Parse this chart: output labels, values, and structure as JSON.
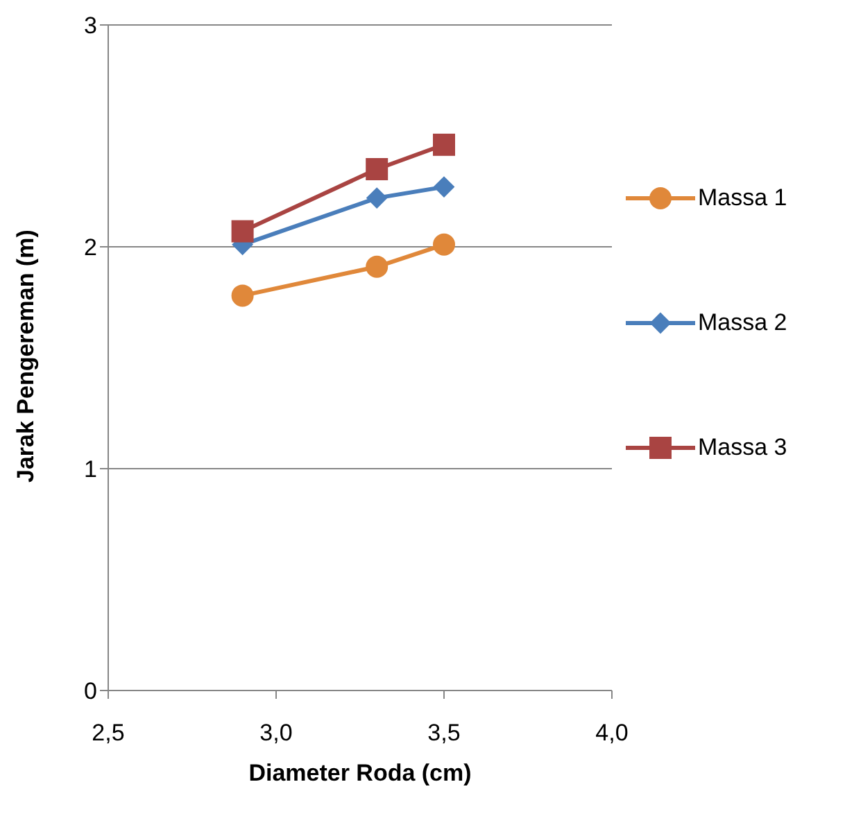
{
  "chart_data": {
    "type": "line",
    "xlabel": "Diameter Roda (cm)",
    "ylabel": "Jarak Pengereman (m)",
    "x": [
      2.9,
      3.3,
      3.5
    ],
    "series": [
      {
        "name": "Massa 1",
        "color": "#e0883a",
        "marker": "circle",
        "values": [
          1.78,
          1.91,
          2.01
        ]
      },
      {
        "name": "Massa 2",
        "color": "#4a7ebb",
        "marker": "diamond",
        "values": [
          2.01,
          2.22,
          2.27
        ]
      },
      {
        "name": "Massa 3",
        "color": "#a94442",
        "marker": "square",
        "values": [
          2.07,
          2.35,
          2.46
        ]
      }
    ],
    "xlim": [
      2.5,
      4.0
    ],
    "xticks": [
      {
        "value": 2.5,
        "label": "2,5"
      },
      {
        "value": 3.0,
        "label": "3,0"
      },
      {
        "value": 3.5,
        "label": "3,5"
      },
      {
        "value": 4.0,
        "label": "4,0"
      }
    ],
    "ylim": [
      0,
      3
    ],
    "yticks": [
      0,
      1,
      2,
      3
    ],
    "grid": "y",
    "legend": "right"
  }
}
